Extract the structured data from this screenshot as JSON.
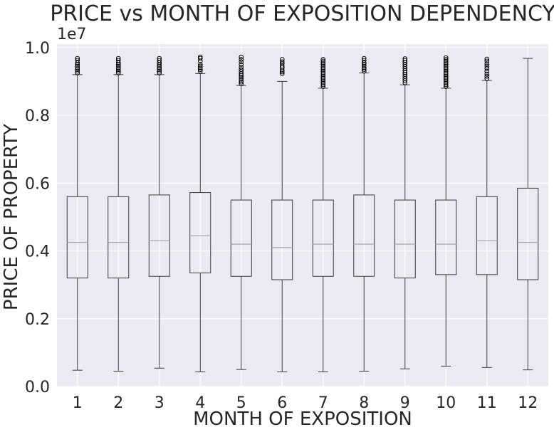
{
  "chart_data": {
    "type": "box",
    "title": "PRICE vs MONTH OF EXPOSITION DEPENDENCY",
    "xlabel": "MONTH OF EXPOSITION",
    "ylabel": "PRICE OF PROPERTY",
    "y_scale_label": "1e7",
    "ylim": [
      0,
      10100000
    ],
    "y_ticks": [
      {
        "value": 0,
        "label": "0.0"
      },
      {
        "value": 2000000,
        "label": "0.2"
      },
      {
        "value": 4000000,
        "label": "0.4"
      },
      {
        "value": 6000000,
        "label": "0.6"
      },
      {
        "value": 8000000,
        "label": "0.8"
      },
      {
        "value": 10000000,
        "label": "1.0"
      }
    ],
    "grid": true,
    "colors": {
      "plot_background": "#eaeaf2",
      "grid": "#ffffff",
      "box_edge": "#3b3b3b",
      "whisker": "#3b3b3b",
      "median": "#a8a8a8",
      "outlier_edge": "#000000"
    },
    "categories": [
      "1",
      "2",
      "3",
      "4",
      "5",
      "6",
      "7",
      "8",
      "9",
      "10",
      "11",
      "12"
    ],
    "boxes": [
      {
        "category": "1",
        "whislo": 480000,
        "q1": 3200000,
        "med": 4250000,
        "q3": 5600000,
        "whishi": 9200000,
        "fliers": [
          9250000,
          9300000,
          9350000,
          9400000,
          9450000,
          9500000,
          9550000,
          9620000,
          9680000
        ]
      },
      {
        "category": "2",
        "whislo": 450000,
        "q1": 3200000,
        "med": 4250000,
        "q3": 5600000,
        "whishi": 9200000,
        "fliers": [
          9250000,
          9300000,
          9350000,
          9400000,
          9450000,
          9500000,
          9550000,
          9620000,
          9680000
        ]
      },
      {
        "category": "3",
        "whislo": 540000,
        "q1": 3250000,
        "med": 4300000,
        "q3": 5650000,
        "whishi": 9200000,
        "fliers": [
          9250000,
          9300000,
          9350000,
          9400000,
          9450000,
          9500000,
          9560000,
          9620000,
          9680000
        ]
      },
      {
        "category": "4",
        "whislo": 430000,
        "q1": 3350000,
        "med": 4450000,
        "q3": 5720000,
        "whishi": 9230000,
        "fliers": [
          9300000,
          9350000,
          9400000,
          9450000,
          9500000,
          9600000,
          9680000,
          9720000
        ]
      },
      {
        "category": "5",
        "whislo": 500000,
        "q1": 3250000,
        "med": 4200000,
        "q3": 5500000,
        "whishi": 8880000,
        "fliers": [
          8930000,
          8980000,
          9030000,
          9080000,
          9130000,
          9180000,
          9230000,
          9290000,
          9350000,
          9420000,
          9500000,
          9580000,
          9650000,
          9720000
        ]
      },
      {
        "category": "6",
        "whislo": 430000,
        "q1": 3150000,
        "med": 4100000,
        "q3": 5500000,
        "whishi": 9000000,
        "fliers": [
          9230000,
          9280000,
          9330000,
          9400000,
          9450000,
          9520000,
          9580000,
          9650000
        ]
      },
      {
        "category": "7",
        "whislo": 430000,
        "q1": 3250000,
        "med": 4200000,
        "q3": 5500000,
        "whishi": 8800000,
        "fliers": [
          8850000,
          8900000,
          8950000,
          9000000,
          9050000,
          9100000,
          9150000,
          9200000,
          9250000,
          9300000,
          9350000,
          9400000,
          9450000,
          9500000,
          9550000,
          9600000,
          9650000
        ]
      },
      {
        "category": "8",
        "whislo": 450000,
        "q1": 3250000,
        "med": 4200000,
        "q3": 5650000,
        "whishi": 9250000,
        "fliers": [
          9300000,
          9350000,
          9400000,
          9450000,
          9500000,
          9550000,
          9620000,
          9680000
        ]
      },
      {
        "category": "9",
        "whislo": 520000,
        "q1": 3200000,
        "med": 4200000,
        "q3": 5500000,
        "whishi": 8900000,
        "fliers": [
          8960000,
          9020000,
          9080000,
          9140000,
          9200000,
          9260000,
          9320000,
          9380000,
          9440000,
          9500000,
          9560000,
          9620000,
          9670000
        ]
      },
      {
        "category": "10",
        "whislo": 600000,
        "q1": 3300000,
        "med": 4200000,
        "q3": 5500000,
        "whishi": 8800000,
        "fliers": [
          8850000,
          8900000,
          8950000,
          9000000,
          9050000,
          9100000,
          9150000,
          9200000,
          9250000,
          9300000,
          9350000,
          9400000,
          9450000,
          9500000,
          9550000,
          9600000,
          9650000,
          9700000
        ]
      },
      {
        "category": "11",
        "whislo": 560000,
        "q1": 3300000,
        "med": 4300000,
        "q3": 5600000,
        "whishi": 9030000,
        "fliers": [
          9080000,
          9150000,
          9220000,
          9300000,
          9380000,
          9450000,
          9520000,
          9600000,
          9660000
        ]
      },
      {
        "category": "12",
        "whislo": 490000,
        "q1": 3150000,
        "med": 4250000,
        "q3": 5850000,
        "whishi": 9680000,
        "fliers": []
      }
    ]
  }
}
